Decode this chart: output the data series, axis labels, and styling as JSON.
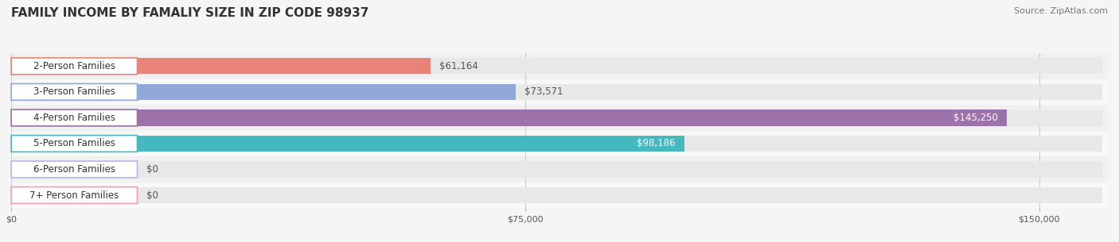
{
  "title": "FAMILY INCOME BY FAMALIY SIZE IN ZIP CODE 98937",
  "source": "Source: ZipAtlas.com",
  "categories": [
    "2-Person Families",
    "3-Person Families",
    "4-Person Families",
    "5-Person Families",
    "6-Person Families",
    "7+ Person Families"
  ],
  "values": [
    61164,
    73571,
    145250,
    98186,
    0,
    0
  ],
  "bar_colors": [
    "#E8837A",
    "#8FA8D8",
    "#9B72AA",
    "#45B8C0",
    "#B0B8E8",
    "#F0A0B0"
  ],
  "label_colors": [
    "#555555",
    "#555555",
    "#ffffff",
    "#ffffff",
    "#555555",
    "#555555"
  ],
  "value_labels": [
    "$61,164",
    "$73,571",
    "$145,250",
    "$98,186",
    "$0",
    "$0"
  ],
  "x_max": 160000,
  "x_ticks": [
    0,
    75000,
    150000
  ],
  "x_tick_labels": [
    "$0",
    "$75,000",
    "$150,000"
  ],
  "background_color": "#f5f5f5",
  "bar_bg_color": "#e8e8e8",
  "title_fontsize": 11,
  "source_fontsize": 8,
  "label_fontsize": 8.5,
  "value_fontsize": 8.5,
  "bar_height": 0.62,
  "row_bg_colors": [
    "#f0f0f0",
    "#f8f8f8"
  ]
}
